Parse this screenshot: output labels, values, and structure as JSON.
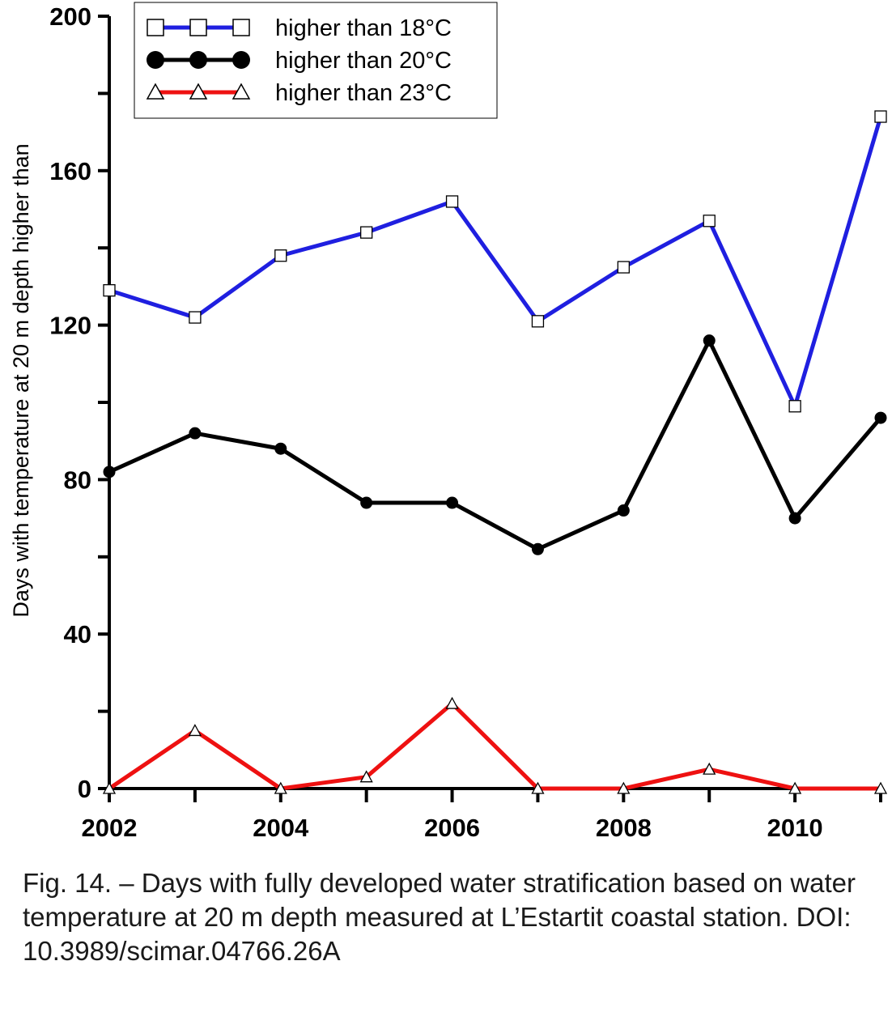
{
  "chart_data": {
    "type": "line",
    "title": "",
    "xlabel": "",
    "ylabel": "Days with temperature at 20 m depth higher than",
    "x": [
      2002,
      2003,
      2004,
      2005,
      2006,
      2007,
      2008,
      2009,
      2010,
      2011
    ],
    "xlim": [
      2002,
      2011
    ],
    "ylim": [
      0,
      200
    ],
    "x_tick_labels": [
      "2002",
      "2004",
      "2006",
      "2008",
      "2010"
    ],
    "y_tick_labels": [
      "0",
      "40",
      "80",
      "120",
      "160",
      "200"
    ],
    "grid": false,
    "legend_position": "top-left",
    "series": [
      {
        "name": "higher than 18°C",
        "color": "#1f1fe0",
        "marker": "open-square",
        "values": [
          129,
          122,
          138,
          144,
          152,
          121,
          135,
          147,
          99,
          174
        ]
      },
      {
        "name": "higher than 20°C",
        "color": "#000000",
        "marker": "filled-circle",
        "values": [
          82,
          92,
          88,
          74,
          74,
          62,
          72,
          116,
          70,
          96
        ]
      },
      {
        "name": "higher than 23°C",
        "color": "#ee1111",
        "marker": "open-triangle",
        "values": [
          0,
          15,
          0,
          3,
          22,
          0,
          0,
          5,
          0,
          0
        ]
      }
    ]
  },
  "caption": "Fig. 14. – Days with fully developed water stratification based on water temperature at 20 m depth measured at L’Estartit coastal station. DOI: 10.3989/scimar.04766.26A"
}
